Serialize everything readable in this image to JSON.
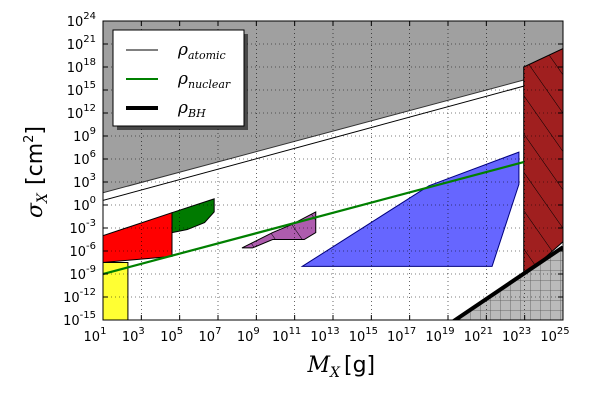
{
  "chart_data": {
    "type": "area",
    "title": "",
    "xlabel": {
      "symbol": "M",
      "subscript": "X",
      "unit": "[g]"
    },
    "ylabel": {
      "symbol": "σ",
      "subscript": "X",
      "unit": "[cm",
      "unit_power": "2",
      "unit_close": "]"
    },
    "x_scale": "log10",
    "y_scale": "log10",
    "xlim_exp": [
      1,
      25
    ],
    "ylim_exp": [
      -15,
      24
    ],
    "x_ticks": [
      {
        "base": "10",
        "exp": "1"
      },
      {
        "base": "10",
        "exp": "3"
      },
      {
        "base": "10",
        "exp": "5"
      },
      {
        "base": "10",
        "exp": "7"
      },
      {
        "base": "10",
        "exp": "9"
      },
      {
        "base": "10",
        "exp": "11"
      },
      {
        "base": "10",
        "exp": "13"
      },
      {
        "base": "10",
        "exp": "15"
      },
      {
        "base": "10",
        "exp": "17"
      },
      {
        "base": "10",
        "exp": "19"
      },
      {
        "base": "10",
        "exp": "21"
      },
      {
        "base": "10",
        "exp": "23"
      },
      {
        "base": "10",
        "exp": "25"
      }
    ],
    "y_ticks": [
      {
        "base": "10",
        "exp": "-15"
      },
      {
        "base": "10",
        "exp": "-12"
      },
      {
        "base": "10",
        "exp": "-9"
      },
      {
        "base": "10",
        "exp": "-6"
      },
      {
        "base": "10",
        "exp": "-3"
      },
      {
        "base": "10",
        "exp": "0"
      },
      {
        "base": "10",
        "exp": "3"
      },
      {
        "base": "10",
        "exp": "6"
      },
      {
        "base": "10",
        "exp": "9"
      },
      {
        "base": "10",
        "exp": "12"
      },
      {
        "base": "10",
        "exp": "15"
      },
      {
        "base": "10",
        "exp": "18"
      },
      {
        "base": "10",
        "exp": "21"
      },
      {
        "base": "10",
        "exp": "24"
      }
    ],
    "grid": true,
    "legend_position": "top-left",
    "legend": [
      {
        "symbol": "ρ",
        "subscript": "atomic",
        "color": "#000000",
        "width": 1
      },
      {
        "symbol": "ρ",
        "subscript": "nuclear",
        "color": "#008000",
        "width": 2
      },
      {
        "symbol": "ρ",
        "subscript": "BH",
        "color": "#000000",
        "width": 4
      }
    ],
    "lines": [
      {
        "name": "rho_atomic",
        "color": "#000000",
        "width": 1,
        "points": [
          [
            1,
            0.6
          ],
          [
            22.95,
            15.5
          ]
        ]
      },
      {
        "name": "rho_nuclear",
        "color": "#008000",
        "width": 2.2,
        "points": [
          [
            1,
            -9
          ],
          [
            22.95,
            5.6
          ]
        ]
      },
      {
        "name": "rho_BH",
        "color": "#000000",
        "width": 4,
        "points": [
          [
            19.2,
            -15.3
          ],
          [
            25,
            -5.5
          ]
        ]
      }
    ],
    "regions": [
      {
        "name": "gray-upper",
        "fill": "#a0a0a0",
        "stroke": "#333333",
        "opacity": 1,
        "points": [
          [
            1,
            24
          ],
          [
            25,
            24
          ],
          [
            25,
            20.4
          ],
          [
            22.95,
            16.3
          ],
          [
            1,
            1.6
          ]
        ]
      },
      {
        "name": "red-small",
        "fill": "#ff0000",
        "stroke": "#000000",
        "opacity": 1,
        "points": [
          [
            1,
            -4
          ],
          [
            4.6,
            -1
          ],
          [
            4.6,
            -6.7
          ],
          [
            1,
            -7.5
          ]
        ]
      },
      {
        "name": "yellow",
        "fill": "#ffff33",
        "stroke": "#000000",
        "opacity": 1,
        "points": [
          [
            1,
            -7.5
          ],
          [
            2.3,
            -7.5
          ],
          [
            2.3,
            -15
          ],
          [
            1,
            -15
          ]
        ]
      },
      {
        "name": "green",
        "fill": "#007a00",
        "stroke": "#000000",
        "opacity": 1,
        "points": [
          [
            4.6,
            -1
          ],
          [
            6.8,
            0.8
          ],
          [
            6.8,
            -0.9
          ],
          [
            6.3,
            -2.3
          ],
          [
            5.4,
            -3.2
          ],
          [
            4.6,
            -3.6
          ]
        ]
      },
      {
        "name": "purple",
        "fill": "#a040a0",
        "stroke": "#000000",
        "opacity": 0.85,
        "hatch": "diag",
        "points": [
          [
            8.25,
            -5.6
          ],
          [
            9.85,
            -3.6
          ],
          [
            10.8,
            -2.6
          ],
          [
            12.1,
            -0.9
          ],
          [
            12.1,
            -3.6
          ],
          [
            11.5,
            -4.5
          ],
          [
            9.85,
            -4.5
          ],
          [
            8.8,
            -5.6
          ]
        ]
      },
      {
        "name": "blue",
        "fill": "#5555ff",
        "stroke": "#000080",
        "opacity": 0.9,
        "points": [
          [
            11.4,
            -8.0
          ],
          [
            18,
            2.5
          ],
          [
            22.7,
            6.9
          ],
          [
            22.7,
            2.7
          ],
          [
            21.3,
            -8.0
          ]
        ]
      },
      {
        "name": "dark-red",
        "fill": "#a01f1f",
        "stroke": "#000000",
        "opacity": 1,
        "hatch": "diag",
        "points": [
          [
            22.95,
            18.0
          ],
          [
            25,
            20.4
          ],
          [
            25,
            -4.8
          ],
          [
            22.95,
            -9.3
          ]
        ]
      },
      {
        "name": "gray-lower",
        "fill": "#bbbbbb",
        "stroke": "#555555",
        "opacity": 1,
        "hatch": "grid",
        "points": [
          [
            19.2,
            -15.3
          ],
          [
            25,
            -5.5
          ],
          [
            25,
            -15.3
          ]
        ]
      }
    ]
  }
}
